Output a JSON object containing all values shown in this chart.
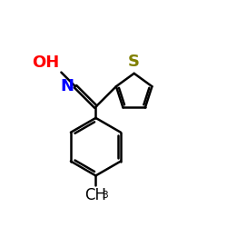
{
  "background_color": "#ffffff",
  "atom_colors": {
    "S": "#808000",
    "N": "#0000ff",
    "O": "#ff0000",
    "C": "#000000",
    "H": "#000000"
  },
  "bond_color": "#000000",
  "bond_width": 1.8,
  "font_size_atoms": 13,
  "font_size_methyl": 12,
  "xlim": [
    0,
    10
  ],
  "ylim": [
    0,
    10
  ]
}
